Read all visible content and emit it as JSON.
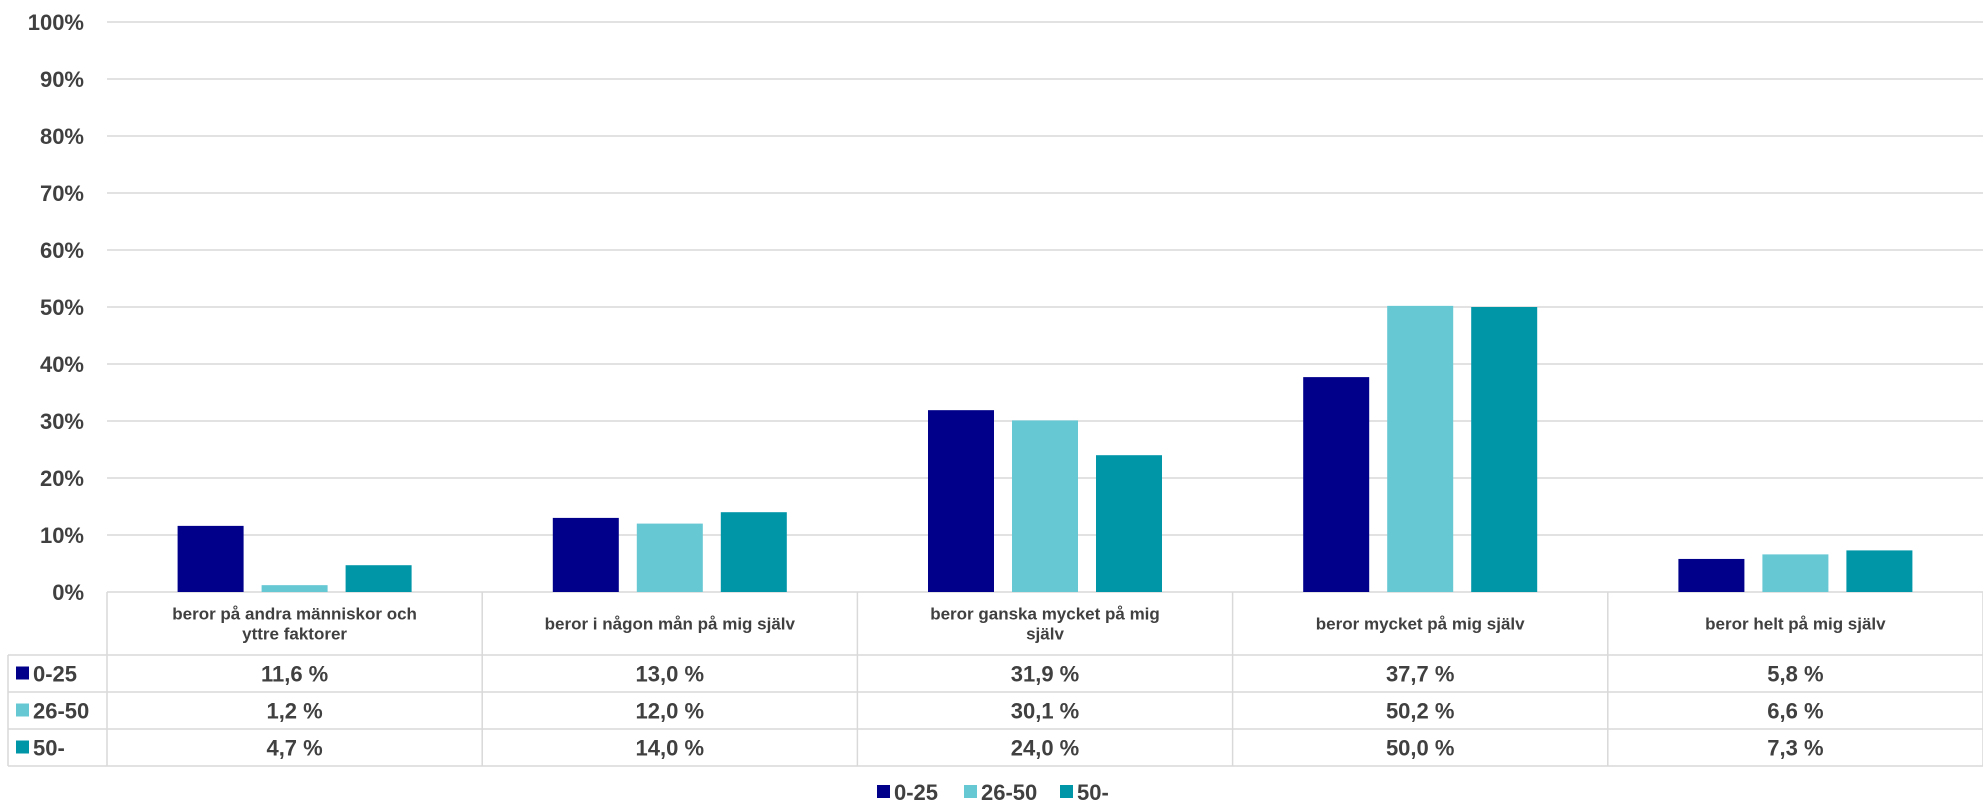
{
  "chart_data": {
    "type": "bar",
    "categories": [
      "beror på andra människor och yttre faktorer",
      "beror i någon mån på mig själv",
      "beror ganska mycket på mig själv",
      "beror mycket på mig själv",
      "beror helt på mig själv"
    ],
    "category_lines": [
      [
        "beror på andra människor och",
        "yttre faktorer"
      ],
      [
        "beror i någon mån på mig själv"
      ],
      [
        "beror ganska mycket på mig",
        "själv"
      ],
      [
        "beror mycket på mig själv"
      ],
      [
        "beror helt på mig själv"
      ]
    ],
    "series": [
      {
        "name": "0-25",
        "color": "#00008B",
        "values": [
          11.6,
          13.0,
          31.9,
          37.7,
          5.8
        ],
        "labels": [
          "11,6 %",
          "13,0 %",
          "31,9 %",
          "37,7 %",
          "5,8 %"
        ]
      },
      {
        "name": "26-50",
        "color": "#66C8D3",
        "values": [
          1.2,
          12.0,
          30.1,
          50.2,
          6.6
        ],
        "labels": [
          "1,2 %",
          "12,0 %",
          "30,1 %",
          "50,2 %",
          "6,6 %"
        ]
      },
      {
        "name": "50-",
        "color": "#0096A8",
        "values": [
          4.7,
          14.0,
          24.0,
          50.0,
          7.3
        ],
        "labels": [
          "4,7 %",
          "14,0 %",
          "24,0 %",
          "50,0 %",
          "7,3 %"
        ]
      }
    ],
    "ylim": [
      0,
      100
    ],
    "yticks": [
      "0%",
      "10%",
      "20%",
      "30%",
      "40%",
      "50%",
      "60%",
      "70%",
      "80%",
      "90%",
      "100%"
    ],
    "grid": true,
    "legend": "bottom",
    "data_table": true
  }
}
